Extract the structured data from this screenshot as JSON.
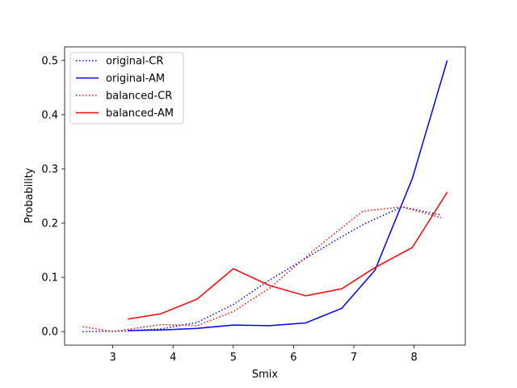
{
  "chart_data": {
    "type": "line",
    "title": "",
    "xlabel": "Smix",
    "ylabel": "Probability",
    "xlim": [
      2.2,
      8.85
    ],
    "ylim": [
      -0.025,
      0.525
    ],
    "xticks": [
      3,
      4,
      5,
      6,
      7,
      8
    ],
    "yticks": [
      0.0,
      0.1,
      0.2,
      0.3,
      0.4,
      0.5
    ],
    "ytick_labels": [
      "0.0",
      "0.1",
      "0.2",
      "0.3",
      "0.4",
      "0.5"
    ],
    "grid": false,
    "legend_position": "top-left",
    "series": [
      {
        "name": "original-CR",
        "color": "#0000ff",
        "style": "dotted",
        "x": [
          2.5,
          3.2,
          3.8,
          4.4,
          5.0,
          5.6,
          6.2,
          6.8,
          7.2,
          7.8,
          8.45
        ],
        "y": [
          0.0,
          0.001,
          0.005,
          0.017,
          0.05,
          0.095,
          0.135,
          0.175,
          0.2,
          0.23,
          0.215
        ]
      },
      {
        "name": "original-AM",
        "color": "#0000ff",
        "style": "solid",
        "x": [
          3.25,
          3.8,
          4.4,
          5.0,
          5.6,
          6.2,
          6.8,
          7.35,
          7.97,
          8.55
        ],
        "y": [
          0.002,
          0.003,
          0.006,
          0.012,
          0.011,
          0.016,
          0.043,
          0.113,
          0.282,
          0.5
        ]
      },
      {
        "name": "balanced-CR",
        "color": "#ff0000",
        "style": "dotted",
        "x": [
          2.5,
          3.0,
          3.8,
          4.4,
          5.0,
          5.6,
          6.2,
          6.5,
          7.15,
          7.8,
          8.45
        ],
        "y": [
          0.009,
          0.0,
          0.013,
          0.011,
          0.037,
          0.08,
          0.137,
          0.165,
          0.222,
          0.23,
          0.21
        ]
      },
      {
        "name": "balanced-AM",
        "color": "#ff0000",
        "style": "solid",
        "x": [
          3.25,
          3.8,
          4.4,
          5.0,
          5.6,
          6.2,
          6.8,
          7.35,
          7.97,
          8.55
        ],
        "y": [
          0.023,
          0.033,
          0.06,
          0.116,
          0.085,
          0.066,
          0.079,
          0.118,
          0.155,
          0.257
        ]
      }
    ]
  }
}
